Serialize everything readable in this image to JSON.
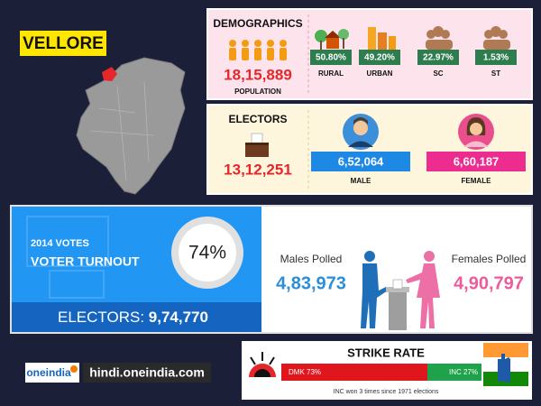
{
  "header": {
    "district": "VELLORE"
  },
  "demographics": {
    "title": "DEMOGRAPHICS",
    "population": "18,15,889",
    "population_label": "POPULATION",
    "groups": [
      {
        "value": "50.80%",
        "label": "RURAL"
      },
      {
        "value": "49.20%",
        "label": "URBAN"
      },
      {
        "value": "22.97%",
        "label": "SC"
      },
      {
        "value": "1.53%",
        "label": "ST"
      }
    ]
  },
  "electors": {
    "title": "ELECTORS",
    "total": "13,12,251",
    "male": {
      "value": "6,52,064",
      "label": "MALE"
    },
    "female": {
      "value": "6,60,187",
      "label": "FEMALE"
    }
  },
  "turnout": {
    "year_label": "2014 VOTES",
    "title": "VOTER TURNOUT",
    "percent": "74%",
    "electors_label": "ELECTORS:",
    "electors_value": "9,74,770",
    "males_label": "Males Polled",
    "males_value": "4,83,973",
    "females_label": "Females Polled",
    "females_value": "4,90,797"
  },
  "strike_rate": {
    "title": "STRIKE RATE",
    "dmk": "DMK 73%",
    "inc": "INC 27%",
    "note": "INC won 3 times since 1971 elections"
  },
  "footer": {
    "brand": "oneindia",
    "site": "hindi.oneindia.com"
  }
}
